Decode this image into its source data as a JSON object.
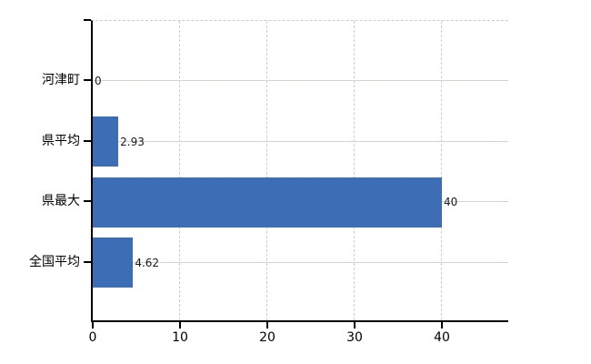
{
  "chart_data": {
    "type": "bar",
    "orientation": "horizontal",
    "title": "",
    "xlabel": "",
    "ylabel": "",
    "categories": [
      "河津町",
      "県平均",
      "県最大",
      "全国平均"
    ],
    "values": [
      0,
      2.93,
      40,
      4.62
    ],
    "value_labels": [
      "0",
      "2.93",
      "40",
      "4.62"
    ],
    "x_ticks": [
      0,
      10,
      20,
      30,
      40
    ],
    "xlim": [
      0,
      47.8
    ],
    "grid": true,
    "legend": false,
    "colors": {
      "bar": "#3d6db4",
      "h_gridline": "#d0d6cf",
      "v_gridline": "#cdcdcd",
      "axis": "#000000",
      "category_text": "#000000",
      "value_text": "#1a1a1a"
    }
  }
}
